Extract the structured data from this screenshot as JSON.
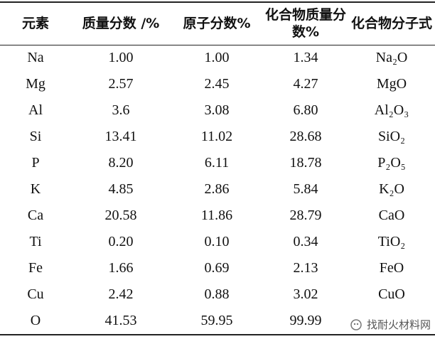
{
  "table": {
    "header": [
      "元素",
      "质量分数 /%",
      "原子分数%",
      "化合物质量分数%",
      "化合物分子式"
    ],
    "rows": [
      [
        "Na",
        "1.00",
        "1.00",
        "1.34",
        "Na₂O"
      ],
      [
        "Mg",
        "2.57",
        "2.45",
        "4.27",
        "MgO"
      ],
      [
        "Al",
        "3.6",
        "3.08",
        "6.80",
        "Al₂O₃"
      ],
      [
        "Si",
        "13.41",
        "11.02",
        "28.68",
        "SiO₂"
      ],
      [
        "P",
        "8.20",
        "6.11",
        "18.78",
        "P₂O₅"
      ],
      [
        "K",
        "4.85",
        "2.86",
        "5.84",
        "K₂O"
      ],
      [
        "Ca",
        "20.58",
        "11.86",
        "28.79",
        "CaO"
      ],
      [
        "Ti",
        "0.20",
        "0.10",
        "0.34",
        "TiO₂"
      ],
      [
        "Fe",
        "1.66",
        "0.69",
        "2.13",
        "FeO"
      ],
      [
        "Cu",
        "2.42",
        "0.88",
        "3.02",
        "CuO"
      ],
      [
        "O",
        "41.53",
        "59.95",
        "99.99",
        null
      ]
    ]
  },
  "watermark": "找耐火材料网"
}
